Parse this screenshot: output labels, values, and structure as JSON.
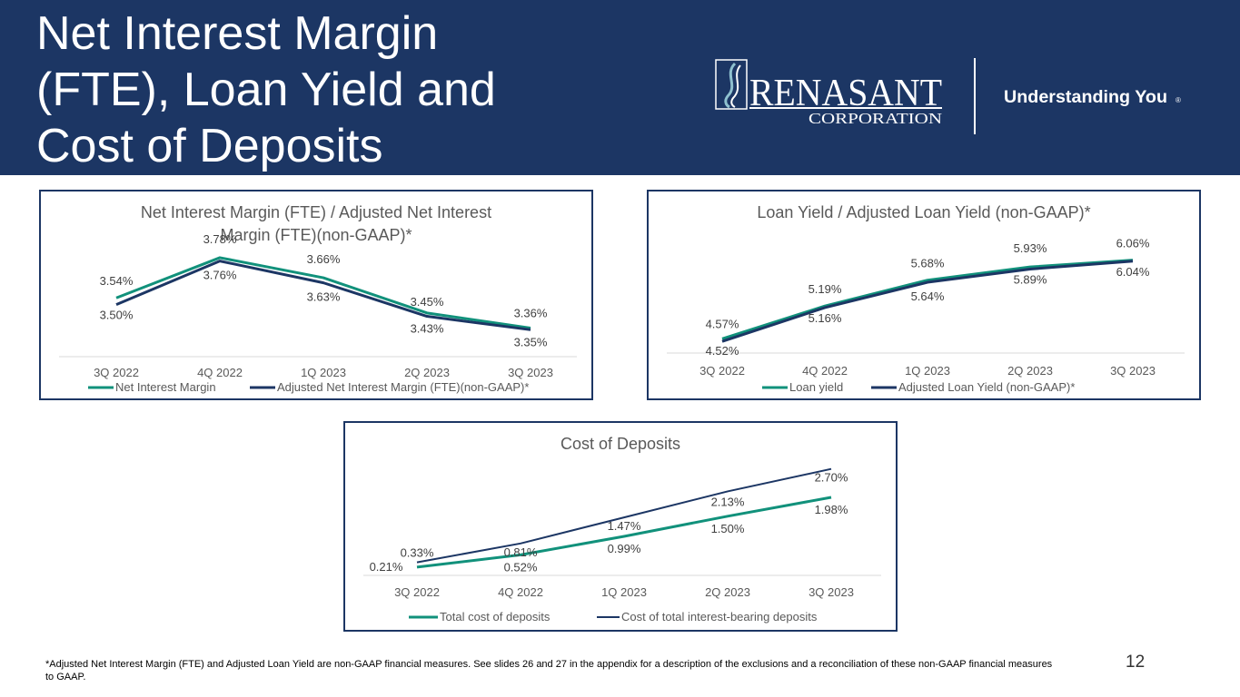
{
  "page": {
    "title_lines": [
      "Net Interest Margin",
      "(FTE), Loan Yield and",
      "Cost of Deposits"
    ],
    "logo_name": "RENASANT",
    "logo_sub": "CORPORATION",
    "tagline": "Understanding You",
    "tagline_mark": "®",
    "footnote": "*Adjusted Net Interest Margin (FTE) and Adjusted Loan Yield are non-GAAP financial measures. See slides 26 and 27 in the appendix for a description of the exclusions and a reconciliation of these non-GAAP financial measures to GAAP.",
    "page_number": "12"
  },
  "colors": {
    "navy": "#1c3664",
    "teal": "#11917b",
    "axis_text": "#595959",
    "title_text": "#595959",
    "panel_border": "#1c3664"
  },
  "chart_data": [
    {
      "type": "line",
      "title_lines": [
        "Net Interest Margin (FTE) / Adjusted Net Interest",
        "Margin (FTE)(non-GAAP)*"
      ],
      "categories": [
        "3Q 2022",
        "4Q 2022",
        "1Q 2023",
        "2Q 2023",
        "3Q 2023"
      ],
      "series": [
        {
          "name": "Net Interest Margin",
          "color": "#11917b",
          "values": [
            3.54,
            3.78,
            3.66,
            3.45,
            3.36
          ],
          "labels": [
            "3.54%",
            "3.78%",
            "3.66%",
            "3.45%",
            "3.36%"
          ]
        },
        {
          "name": "Adjusted Net Interest Margin (FTE)(non-GAAP)*",
          "color": "#1c3664",
          "values": [
            3.5,
            3.76,
            3.63,
            3.43,
            3.35
          ],
          "labels": [
            "3.50%",
            "3.76%",
            "3.63%",
            "3.43%",
            "3.35%"
          ]
        }
      ],
      "ylim": [
        3.2,
        3.85
      ],
      "legend": "bottom"
    },
    {
      "type": "line",
      "title_lines": [
        "Loan Yield / Adjusted Loan Yield (non-GAAP)*"
      ],
      "categories": [
        "3Q 2022",
        "4Q 2022",
        "1Q 2023",
        "2Q 2023",
        "3Q 2023"
      ],
      "series": [
        {
          "name": "Loan yield",
          "color": "#11917b",
          "values": [
            4.57,
            5.19,
            5.68,
            5.93,
            6.06
          ],
          "labels": [
            "4.57%",
            "5.19%",
            "5.68%",
            "5.93%",
            "6.06%"
          ]
        },
        {
          "name": "Adjusted Loan Yield (non-GAAP)*",
          "color": "#1c3664",
          "values": [
            4.52,
            5.16,
            5.64,
            5.89,
            6.04
          ],
          "labels": [
            "4.52%",
            "5.16%",
            "5.64%",
            "5.89%",
            "6.04%"
          ]
        }
      ],
      "ylim": [
        4.3,
        6.5
      ],
      "legend": "bottom"
    },
    {
      "type": "line",
      "title_lines": [
        "Cost of Deposits"
      ],
      "categories": [
        "3Q 2022",
        "4Q 2022",
        "1Q 2023",
        "2Q 2023",
        "3Q 2023"
      ],
      "series": [
        {
          "name": "Total cost of deposits",
          "color": "#11917b",
          "values": [
            0.21,
            0.52,
            0.99,
            1.5,
            1.98
          ],
          "labels": [
            "0.21%",
            "0.52%",
            "0.99%",
            "1.50%",
            "1.98%"
          ]
        },
        {
          "name": "Cost of total interest-bearing deposits",
          "color": "#1c3664",
          "values": [
            0.33,
            0.81,
            1.47,
            2.13,
            2.7
          ],
          "labels": [
            "0.33%",
            "0.81%",
            "1.47%",
            "2.13%",
            "2.70%"
          ]
        }
      ],
      "ylim": [
        0,
        2.9
      ],
      "legend": "bottom"
    }
  ]
}
